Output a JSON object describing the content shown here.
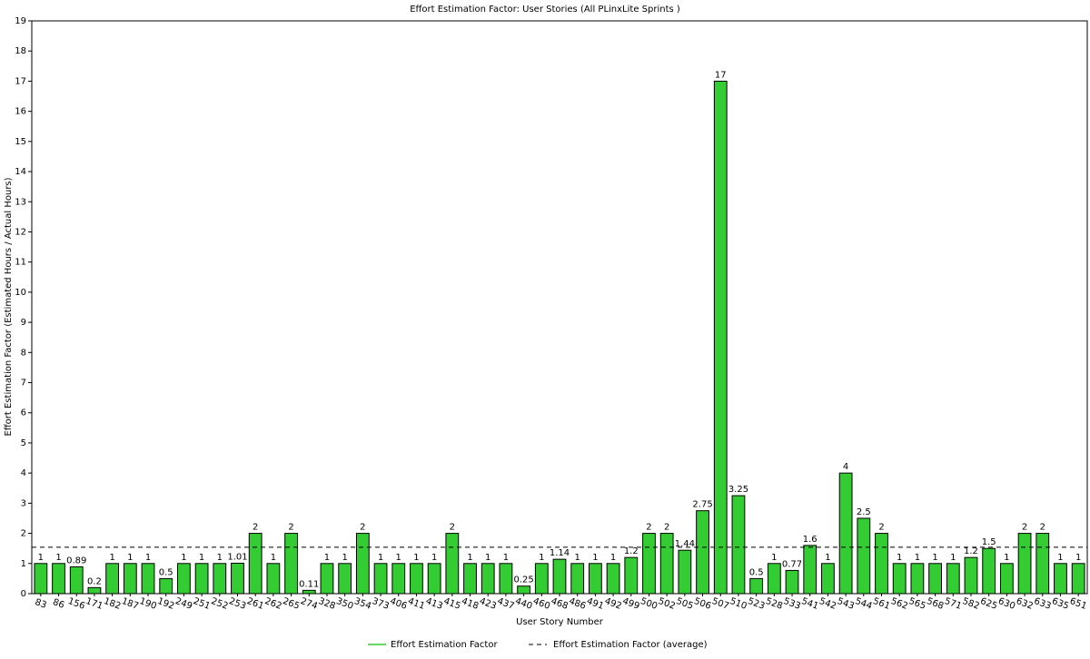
{
  "chart_data": {
    "type": "bar",
    "title": "Effort Estimation Factor: User Stories (All PLinxLite Sprints )",
    "x_label": "User Story Number",
    "y_label": "Effort Estimation Factor (Estimated Hours / Actual Hours)",
    "categories": [
      "83",
      "86",
      "156",
      "171",
      "182",
      "187",
      "190",
      "192",
      "249",
      "251",
      "252",
      "253",
      "261",
      "262",
      "265",
      "274",
      "328",
      "350",
      "354",
      "373",
      "406",
      "411",
      "413",
      "415",
      "418",
      "423",
      "437",
      "440",
      "460",
      "468",
      "486",
      "491",
      "492",
      "499",
      "500",
      "502",
      "505",
      "506",
      "507",
      "510",
      "523",
      "528",
      "533",
      "541",
      "542",
      "543",
      "544",
      "561",
      "562",
      "565",
      "568",
      "571",
      "582",
      "625",
      "630",
      "632",
      "633",
      "635",
      "651"
    ],
    "series": [
      {
        "name": "Effort Estimation Factor",
        "color": "#33cc33",
        "values": [
          1,
          1,
          0.89,
          0.2,
          1,
          1,
          1,
          0.5,
          1,
          1,
          1,
          1.01,
          2,
          1,
          2,
          0.11,
          1,
          1,
          2,
          1,
          1,
          1,
          1,
          2,
          1,
          1,
          1,
          0.25,
          1,
          1.14,
          1,
          1,
          1,
          1.2,
          2,
          2,
          1.44,
          2.75,
          17,
          3.25,
          0.5,
          1,
          0.77,
          1.6,
          1,
          4,
          2.5,
          2,
          1,
          1,
          1,
          1,
          1.2,
          1.5,
          1,
          2,
          2,
          1,
          1
        ]
      }
    ],
    "average": {
      "name": "Effort Estimation Factor (average)",
      "value": 1.54,
      "color": "#000000"
    },
    "ylim": [
      0,
      19
    ],
    "yticks": [
      0,
      1,
      2,
      3,
      4,
      5,
      6,
      7,
      8,
      9,
      10,
      11,
      12,
      13,
      14,
      15,
      16,
      17,
      18,
      19
    ],
    "legend": "bottom"
  }
}
